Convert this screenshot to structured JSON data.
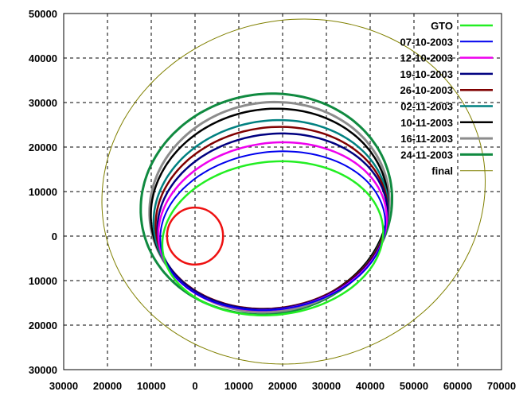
{
  "chart_data": {
    "type": "line",
    "title": "",
    "xlabel": "",
    "ylabel": "",
    "xlim": [
      -30000,
      70000
    ],
    "ylim": [
      -30000,
      50000
    ],
    "grid": true,
    "legend_placement": "top-right",
    "xticks": [
      -30000,
      -20000,
      -10000,
      0,
      10000,
      20000,
      30000,
      40000,
      50000,
      60000,
      70000
    ],
    "xtick_labels": [
      "30000",
      "20000",
      "10000",
      "0",
      "10000",
      "20000",
      "30000",
      "40000",
      "50000",
      "60000",
      "70000"
    ],
    "yticks": [
      -30000,
      -20000,
      -10000,
      0,
      10000,
      20000,
      30000,
      40000,
      50000
    ],
    "ytick_labels": [
      "30000",
      "20000",
      "10000",
      "0",
      "10000",
      "20000",
      "30000",
      "40000",
      "50000"
    ],
    "earth": {
      "cx": 0,
      "cy": 0,
      "r": 6400,
      "color": "#ee1111"
    },
    "series": [
      {
        "name": "GTO",
        "color": "#22ee22",
        "width": 2.5,
        "cx": 17750,
        "cy": -500,
        "a": 25300,
        "b": 17200,
        "rot_deg": 6
      },
      {
        "name": "07-10-2003",
        "color": "#0000ee",
        "width": 2,
        "cx": 17750,
        "cy": 1200,
        "a": 25800,
        "b": 17700,
        "rot_deg": 7
      },
      {
        "name": "12-10-2003",
        "color": "#ee00ee",
        "width": 2.5,
        "cx": 17700,
        "cy": 2200,
        "a": 26200,
        "b": 18700,
        "rot_deg": 8
      },
      {
        "name": "19-10-2003",
        "color": "#000080",
        "width": 2.5,
        "cx": 17700,
        "cy": 3300,
        "a": 26400,
        "b": 19600,
        "rot_deg": 8
      },
      {
        "name": "26-10-2003",
        "color": "#800000",
        "width": 2.5,
        "cx": 17500,
        "cy": 4100,
        "a": 26600,
        "b": 20300,
        "rot_deg": 8
      },
      {
        "name": "02-11-2003",
        "color": "#008080",
        "width": 2.5,
        "cx": 17300,
        "cy": 4700,
        "a": 26900,
        "b": 21200,
        "rot_deg": 9
      },
      {
        "name": "10-11-2003",
        "color": "#000000",
        "width": 2.5,
        "cx": 17000,
        "cy": 6000,
        "a": 27200,
        "b": 22500,
        "rot_deg": 9
      },
      {
        "name": "16-11-2003",
        "color": "#8c8c8c",
        "width": 3,
        "cx": 17000,
        "cy": 6500,
        "a": 27500,
        "b": 23500,
        "rot_deg": 9
      },
      {
        "name": "24-11-2003",
        "color": "#108a40",
        "width": 3,
        "cx": 16300,
        "cy": 7200,
        "a": 28800,
        "b": 24700,
        "rot_deg": 9
      },
      {
        "name": "final",
        "color": "#808000",
        "width": 1,
        "cx": 22500,
        "cy": 10000,
        "a": 44000,
        "b": 38500,
        "rot_deg": 12
      }
    ]
  }
}
